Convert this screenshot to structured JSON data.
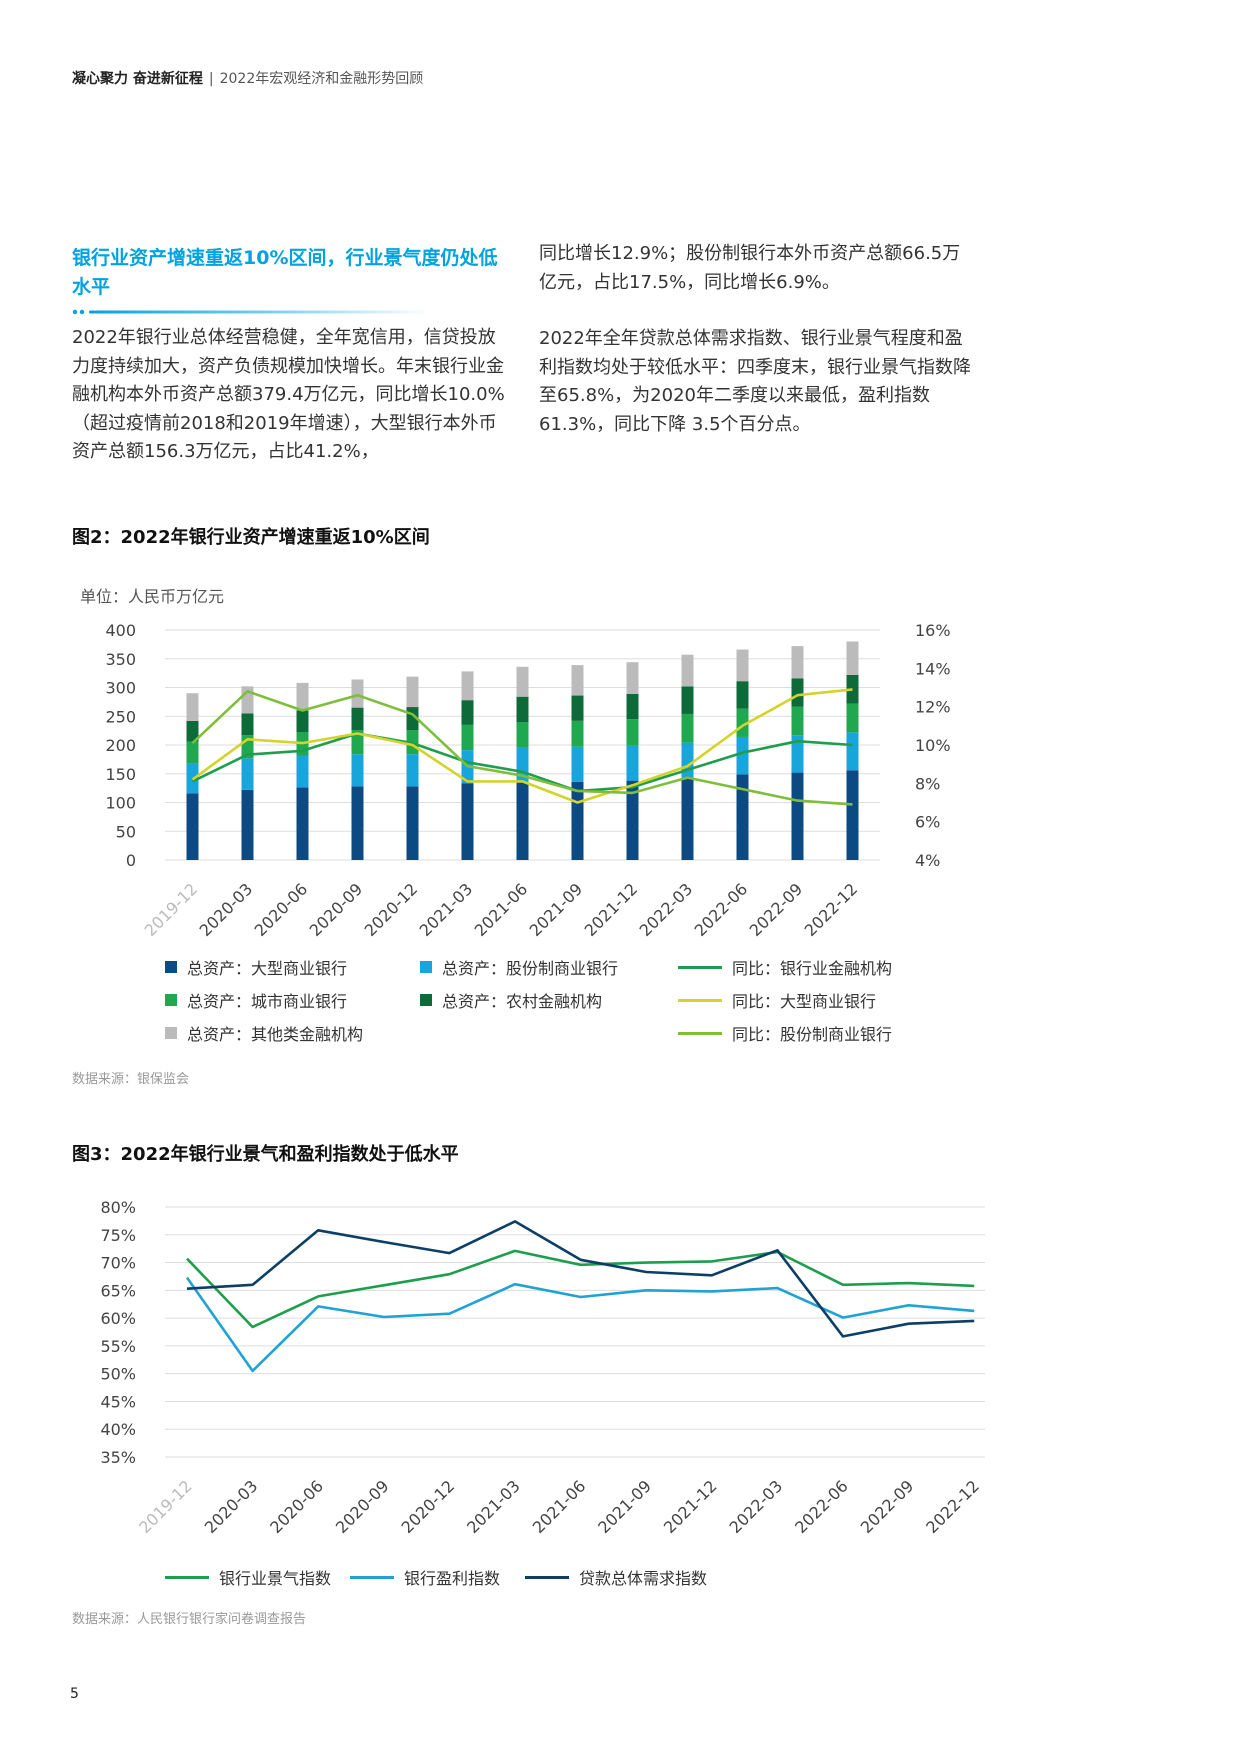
{
  "header": {
    "brand": "凝心聚力 奋进新征程",
    "separator": "|",
    "subtitle": "2022年宏观经济和金融形势回顾"
  },
  "section": {
    "title": "银行业资产增速重返10%区间，行业景气度仍处低水平",
    "left_text": "2022年银行业总体经营稳健，全年宽信用，信贷投放力度持续加大，资产负债规模加快增长。年末银行业金融机构本外币资产总额379.4万亿元，同比增长10.0%（超过疫情前2018和2019年增速），大型银行本外币资产总额156.3万亿元，占比41.2%，",
    "right_text_1": "同比增长12.9%；股份制银行本外币资产总额66.5万亿元，占比17.5%，同比增长6.9%。",
    "right_text_2": "2022年全年贷款总体需求指数、银行业景气程度和盈利指数均处于较低水平：四季度末，银行业景气指数降至65.8%，为2020年二季度以来最低，盈利指数61.3%，同比下降 3.5个百分点。"
  },
  "fig2": {
    "title": "图2：2022年银行业资产增速重返10%区间",
    "unit": "单位：人民币万亿元",
    "source": "数据来源：银保监会",
    "legend": {
      "large": "总资产：大型商业银行",
      "joint": "总资产：股份制商业银行",
      "yoy_all": "同比：银行业金融机构",
      "city": "总资产：城市商业银行",
      "rural": "总资产：农村金融机构",
      "yoy_large": "同比：大型商业银行",
      "other": "总资产：其他类金融机构",
      "yoy_joint": "同比：股份制商业银行"
    },
    "colors": {
      "large": "#0B4A82",
      "joint": "#18A5DC",
      "city": "#1FA84F",
      "rural": "#0D6B3A",
      "other": "#BBBBBB",
      "yoy_all": "#1E9E4C",
      "yoy_large": "#D3D32A",
      "yoy_joint": "#7DBE3A"
    }
  },
  "fig3": {
    "title": "图3：2022年银行业景气和盈利指数处于低水平",
    "source": "数据来源：人民银行银行家问卷调查报告",
    "legend": {
      "climate": "银行业景气指数",
      "profit": "银行盈利指数",
      "demand": "贷款总体需求指数"
    },
    "colors": {
      "climate": "#1E9E4C",
      "profit": "#1FA2D4",
      "demand": "#0C3F66"
    }
  },
  "chart_data": [
    {
      "type": "bar",
      "stacked": true,
      "categories": [
        "2019-12",
        "2020-03",
        "2020-06",
        "2020-09",
        "2020-12",
        "2021-03",
        "2021-06",
        "2021-09",
        "2021-12",
        "2022-03",
        "2022-06",
        "2022-09",
        "2022-12"
      ],
      "ylim": [
        0,
        400
      ],
      "yticks": [
        "0",
        "50",
        "100",
        "150",
        "200",
        "250",
        "300",
        "350",
        "400"
      ],
      "y2lim": [
        4,
        16
      ],
      "y2ticks": [
        "4%",
        "6%",
        "8%",
        "10%",
        "12%",
        "14%",
        "16%"
      ],
      "grid": true,
      "legend_position": "bottom",
      "series": [
        {
          "name": "总资产：大型商业银行",
          "key": "large",
          "axis": "left",
          "kind": "bar",
          "values": [
            116,
            122,
            126,
            128,
            128,
            133,
            135,
            136,
            138,
            141,
            149,
            152,
            156
          ]
        },
        {
          "name": "总资产：股份制商业银行",
          "key": "joint",
          "axis": "left",
          "kind": "bar",
          "values": [
            52,
            55,
            55,
            56,
            56,
            58,
            60,
            61,
            61,
            63,
            65,
            65,
            66
          ]
        },
        {
          "name": "总资产：城市商业银行",
          "key": "city",
          "axis": "left",
          "kind": "bar",
          "values": [
            38,
            40,
            41,
            42,
            42,
            44,
            45,
            45,
            46,
            50,
            49,
            50,
            50
          ]
        },
        {
          "name": "总资产：农村金融机构",
          "key": "rural",
          "axis": "left",
          "kind": "bar",
          "values": [
            36,
            38,
            38,
            39,
            40,
            43,
            44,
            44,
            44,
            48,
            48,
            49,
            50
          ]
        },
        {
          "name": "总资产：其他类金融机构",
          "key": "other",
          "axis": "left",
          "kind": "bar",
          "values": [
            48,
            47,
            48,
            49,
            53,
            50,
            52,
            53,
            55,
            55,
            55,
            56,
            58
          ]
        },
        {
          "name": "同比：银行业金融机构",
          "key": "yoy_all",
          "axis": "right",
          "kind": "line",
          "values": [
            8.1,
            9.5,
            9.7,
            10.6,
            10.1,
            9.1,
            8.6,
            7.6,
            7.8,
            8.7,
            9.6,
            10.2,
            10.0
          ]
        },
        {
          "name": "同比：大型商业银行",
          "key": "yoy_large",
          "axis": "right",
          "kind": "line",
          "values": [
            8.2,
            10.3,
            10.1,
            10.6,
            10.0,
            8.1,
            8.1,
            7.0,
            7.9,
            8.9,
            11.0,
            12.6,
            12.9
          ]
        },
        {
          "name": "同比：股份制商业银行",
          "key": "yoy_joint",
          "axis": "right",
          "kind": "line",
          "values": [
            10.1,
            12.8,
            11.8,
            12.6,
            11.6,
            8.9,
            8.4,
            7.6,
            7.5,
            8.3,
            7.7,
            7.1,
            6.9
          ]
        }
      ]
    },
    {
      "type": "line",
      "categories": [
        "2019-12",
        "2020-03",
        "2020-06",
        "2020-09",
        "2020-12",
        "2021-03",
        "2021-06",
        "2021-09",
        "2021-12",
        "2022-03",
        "2022-06",
        "2022-09",
        "2022-12"
      ],
      "ylim": [
        35,
        80
      ],
      "yticks": [
        "35%",
        "40%",
        "45%",
        "50%",
        "55%",
        "60%",
        "65%",
        "70%",
        "75%",
        "80%"
      ],
      "grid": true,
      "legend_position": "bottom",
      "series": [
        {
          "name": "银行业景气指数",
          "key": "climate",
          "values": [
            70.7,
            58.4,
            63.9,
            65.9,
            67.9,
            72.1,
            69.6,
            70.0,
            70.2,
            71.9,
            66.0,
            66.3,
            65.8
          ]
        },
        {
          "name": "银行盈利指数",
          "key": "profit",
          "values": [
            67.3,
            50.5,
            62.1,
            60.2,
            60.8,
            66.1,
            63.8,
            65.0,
            64.8,
            65.4,
            60.1,
            62.3,
            61.3
          ]
        },
        {
          "name": "贷款总体需求指数",
          "key": "demand",
          "values": [
            65.3,
            66.0,
            75.8,
            73.7,
            71.7,
            77.4,
            70.5,
            68.3,
            67.7,
            72.2,
            56.7,
            59.0,
            59.5
          ]
        }
      ]
    }
  ],
  "page_number": "5"
}
